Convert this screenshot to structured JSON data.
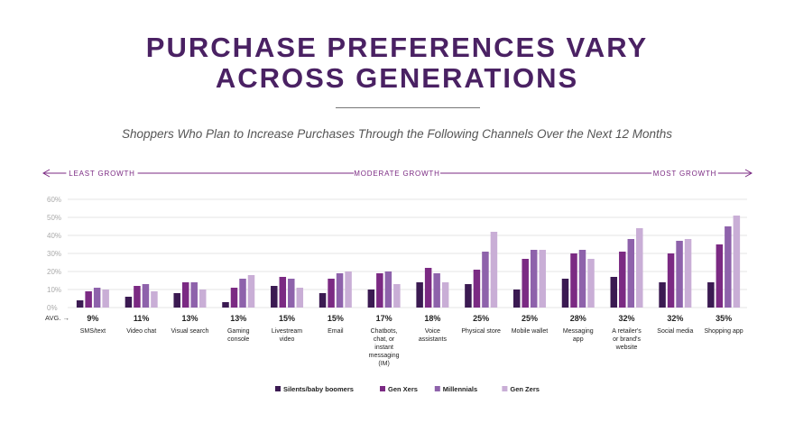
{
  "title_line1": "PURCHASE PREFERENCES VARY",
  "title_line2": "ACROSS GENERATIONS",
  "subtitle": "Shoppers Who Plan to Increase Purchases Through the Following Channels Over the Next 12 Months",
  "growth_scale": {
    "left": "LEAST GROWTH",
    "middle": "MODERATE GROWTH",
    "right": "MOST GROWTH"
  },
  "avg_label": "AVG. →",
  "chart_data": {
    "type": "bar",
    "categories": [
      "SMS/text",
      "Video chat",
      "Visual search",
      "Gaming console",
      "Livestream video",
      "Email",
      "Chatbots, chat, or instant messaging (IM)",
      "Voice assistants",
      "Physical store",
      "Mobile wallet",
      "Messaging app",
      "A retailer's or brand's website",
      "Social media",
      "Shopping app"
    ],
    "category_lines": [
      [
        "SMS/text"
      ],
      [
        "Video chat"
      ],
      [
        "Visual search"
      ],
      [
        "Gaming",
        "console"
      ],
      [
        "Livestream",
        "video"
      ],
      [
        "Email"
      ],
      [
        "Chatbots,",
        "chat, or",
        "instant",
        "messaging",
        "(IM)"
      ],
      [
        "Voice",
        "assistants"
      ],
      [
        "Physical store"
      ],
      [
        "Mobile wallet"
      ],
      [
        "Messaging",
        "app"
      ],
      [
        "A retailer's",
        "or brand's",
        "website"
      ],
      [
        "Social media"
      ],
      [
        "Shopping app"
      ]
    ],
    "averages": [
      "9%",
      "11%",
      "13%",
      "13%",
      "15%",
      "15%",
      "17%",
      "18%",
      "25%",
      "25%",
      "28%",
      "32%",
      "32%",
      "35%"
    ],
    "series": [
      {
        "name": "Silents/baby boomers",
        "color": "#3b1a52",
        "values": [
          4,
          6,
          8,
          3,
          12,
          8,
          10,
          14,
          13,
          10,
          16,
          17,
          14,
          14
        ]
      },
      {
        "name": "Gen Xers",
        "color": "#7b2a83",
        "values": [
          9,
          12,
          14,
          11,
          17,
          16,
          19,
          22,
          21,
          27,
          30,
          31,
          30,
          35
        ]
      },
      {
        "name": "Millennials",
        "color": "#8e62ab",
        "values": [
          11,
          13,
          14,
          16,
          16,
          19,
          20,
          19,
          31,
          32,
          32,
          38,
          37,
          45
        ]
      },
      {
        "name": "Gen Zers",
        "color": "#c9aed6",
        "values": [
          10,
          9,
          10,
          18,
          11,
          20,
          13,
          14,
          42,
          32,
          27,
          44,
          38,
          51
        ]
      }
    ],
    "ylim": [
      0,
      60
    ],
    "yticks": [
      "0%",
      "10%",
      "20%",
      "30%",
      "40%",
      "50%",
      "60%"
    ],
    "grid": true,
    "legend_position": "bottom"
  }
}
